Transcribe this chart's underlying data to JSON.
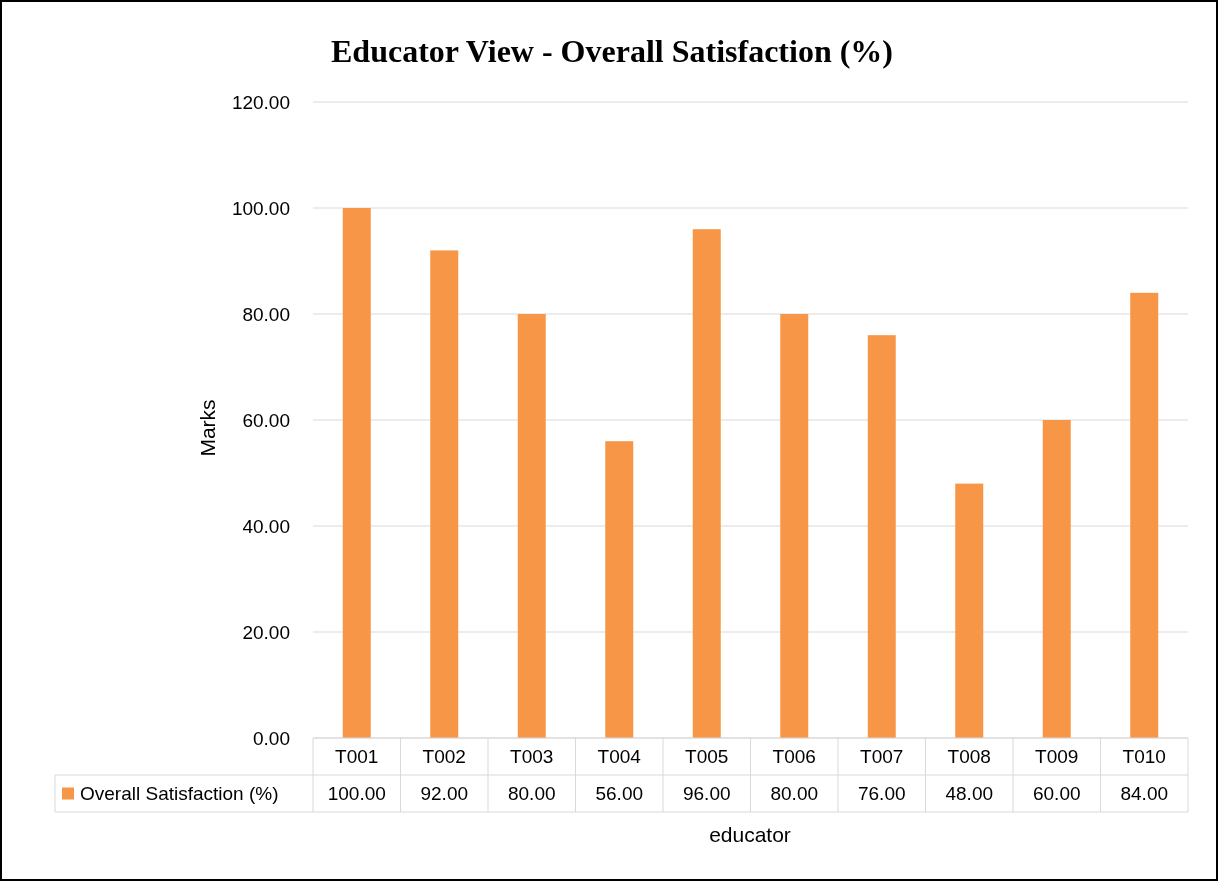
{
  "chart_data": {
    "type": "bar",
    "title": "Educator View - Overall Satisfaction (%)",
    "xlabel": "educator",
    "ylabel": "Marks",
    "categories": [
      "T001",
      "T002",
      "T003",
      "T004",
      "T005",
      "T006",
      "T007",
      "T008",
      "T009",
      "T010"
    ],
    "series": [
      {
        "name": "Overall Satisfaction (%)",
        "color": "#f79646",
        "values": [
          100,
          92,
          80,
          56,
          96,
          80,
          76,
          48,
          60,
          84
        ],
        "value_labels": [
          "100.00",
          "92.00",
          "80.00",
          "56.00",
          "96.00",
          "80.00",
          "76.00",
          "48.00",
          "60.00",
          "84.00"
        ]
      }
    ],
    "ylim": [
      0,
      120
    ],
    "yticks": [
      {
        "value": 0,
        "label": "0.00"
      },
      {
        "value": 20,
        "label": "20.00"
      },
      {
        "value": 40,
        "label": "40.00"
      },
      {
        "value": 60,
        "label": "60.00"
      },
      {
        "value": 80,
        "label": "80.00"
      },
      {
        "value": 100,
        "label": "100.00"
      },
      {
        "value": 120,
        "label": "120.00"
      }
    ],
    "grid": "y",
    "legend": "bottom"
  }
}
